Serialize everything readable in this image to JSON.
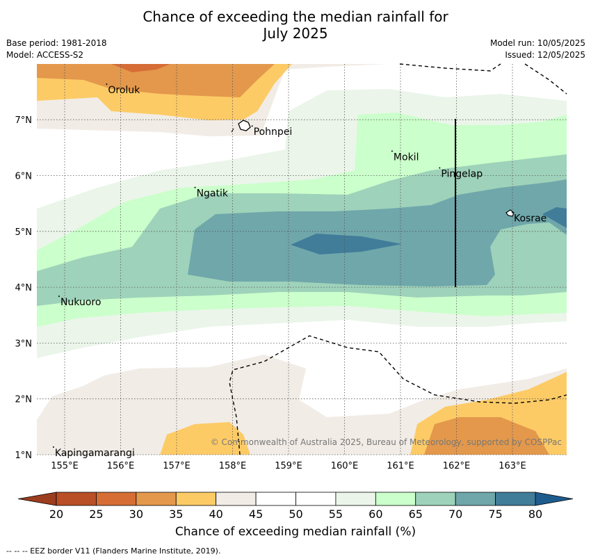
{
  "title_line1": "Chance of exceeding the median rainfall for",
  "title_line2": "July 2025",
  "meta_left": {
    "base_period": "Base period: 1981-2018",
    "model": "Model: ACCESS-S2"
  },
  "meta_right": {
    "model_run": "Model run: 10/05/2025",
    "issued": "Issued: 12/05/2025"
  },
  "y_ticks": [
    "7°N",
    "6°N",
    "5°N",
    "4°N",
    "3°N",
    "2°N",
    "1°N"
  ],
  "x_ticks": [
    "155°E",
    "156°E",
    "157°E",
    "158°E",
    "159°E",
    "160°E",
    "161°E",
    "162°E",
    "163°E"
  ],
  "places": [
    {
      "name": "Oroluk",
      "lon": 155.75,
      "lat": 7.6
    },
    {
      "name": "Pohnpei",
      "lon": 158.35,
      "lat": 6.85
    },
    {
      "name": "Mokil",
      "lon": 160.85,
      "lat": 6.4
    },
    {
      "name": "Pingelap",
      "lon": 161.7,
      "lat": 6.1
    },
    {
      "name": "Ngatik",
      "lon": 157.33,
      "lat": 5.75
    },
    {
      "name": "Kosrae",
      "lon": 163.0,
      "lat": 5.3
    },
    {
      "name": "Nukuoro",
      "lon": 154.9,
      "lat": 3.8
    },
    {
      "name": "Kapingamarangi",
      "lon": 154.8,
      "lat": 1.1
    }
  ],
  "copyright": "© Commonwealth of Australia 2025, Bureau of Meteorology, supported by COSPPac",
  "colorbar": {
    "ticks": [
      "20",
      "25",
      "30",
      "35",
      "40",
      "45",
      "50",
      "55",
      "60",
      "65",
      "70",
      "75",
      "80"
    ],
    "colors": [
      "#b84f27",
      "#d66d35",
      "#e3984b",
      "#fdcb66",
      "#f1ece6",
      "#ffffff",
      "#ffffff",
      "#ebf5ea",
      "#cbffcb",
      "#9ed2ba",
      "#6fa7ab",
      "#417c99"
    ],
    "under_color": "#9c3d1e",
    "over_color": "#1e5c8e",
    "label": "Chance of exceeding median rainfall (%)"
  },
  "footer": "-- -- -- EEZ border V11 (Flanders Marine Institute, 2019)."
}
